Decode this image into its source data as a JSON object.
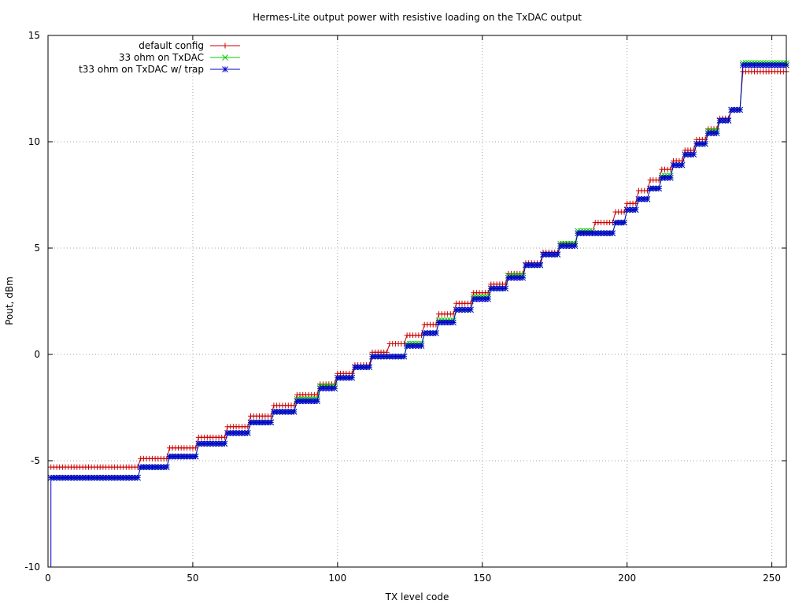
{
  "chart_data": {
    "type": "line",
    "title": "Hermes-Lite output power with resistive loading on the TxDAC output",
    "xlabel": "TX level code",
    "ylabel": "Pout, dBm",
    "xlim": [
      0,
      255
    ],
    "ylim": [
      -10,
      15
    ],
    "xticks": [
      0,
      50,
      100,
      150,
      200,
      250
    ],
    "yticks": [
      -10,
      -5,
      0,
      5,
      10,
      15
    ],
    "grid": true,
    "legend_position": "top-left",
    "series": [
      {
        "name": "default config",
        "color": "#cc0000",
        "marker": "plus",
        "steps": [
          [
            1,
            31,
            -5.3
          ],
          [
            32,
            41,
            -4.9
          ],
          [
            42,
            51,
            -4.4
          ],
          [
            52,
            61,
            -3.9
          ],
          [
            62,
            69,
            -3.4
          ],
          [
            70,
            77,
            -2.9
          ],
          [
            78,
            85,
            -2.4
          ],
          [
            86,
            93,
            -1.9
          ],
          [
            94,
            99,
            -1.4
          ],
          [
            100,
            105,
            -0.9
          ],
          [
            106,
            111,
            -0.5
          ],
          [
            112,
            117,
            0.1
          ],
          [
            118,
            123,
            0.5
          ],
          [
            124,
            129,
            0.9
          ],
          [
            130,
            134,
            1.4
          ],
          [
            135,
            140,
            1.9
          ],
          [
            141,
            146,
            2.4
          ],
          [
            147,
            152,
            2.9
          ],
          [
            153,
            158,
            3.3
          ],
          [
            159,
            164,
            3.8
          ],
          [
            165,
            170,
            4.3
          ],
          [
            171,
            176,
            4.8
          ],
          [
            177,
            182,
            5.2
          ],
          [
            183,
            188,
            5.7
          ],
          [
            189,
            195,
            6.2
          ],
          [
            196,
            199,
            6.7
          ],
          [
            200,
            203,
            7.1
          ],
          [
            204,
            207,
            7.7
          ],
          [
            208,
            211,
            8.2
          ],
          [
            212,
            215,
            8.7
          ],
          [
            216,
            219,
            9.1
          ],
          [
            220,
            223,
            9.6
          ],
          [
            224,
            227,
            10.1
          ],
          [
            228,
            231,
            10.6
          ],
          [
            232,
            235,
            11.1
          ],
          [
            236,
            239,
            11.5
          ],
          [
            240,
            255,
            13.3
          ]
        ]
      },
      {
        "name": "33 ohm on TxDAC",
        "color": "#00cc00",
        "marker": "cross",
        "steps": [
          [
            1,
            31,
            -5.8
          ],
          [
            32,
            41,
            -5.3
          ],
          [
            42,
            51,
            -4.8
          ],
          [
            52,
            61,
            -4.2
          ],
          [
            62,
            69,
            -3.7
          ],
          [
            70,
            77,
            -3.2
          ],
          [
            78,
            85,
            -2.7
          ],
          [
            86,
            93,
            -2.1
          ],
          [
            94,
            99,
            -1.5
          ],
          [
            100,
            105,
            -1.1
          ],
          [
            106,
            111,
            -0.6
          ],
          [
            112,
            123,
            -0.1
          ],
          [
            124,
            129,
            0.5
          ],
          [
            130,
            134,
            1.0
          ],
          [
            135,
            140,
            1.6
          ],
          [
            141,
            146,
            2.1
          ],
          [
            147,
            152,
            2.7
          ],
          [
            153,
            158,
            3.1
          ],
          [
            159,
            164,
            3.7
          ],
          [
            165,
            170,
            4.2
          ],
          [
            171,
            176,
            4.7
          ],
          [
            177,
            182,
            5.2
          ],
          [
            183,
            188,
            5.8
          ],
          [
            189,
            195,
            5.7
          ],
          [
            196,
            199,
            6.2
          ],
          [
            200,
            203,
            6.8
          ],
          [
            204,
            207,
            7.3
          ],
          [
            208,
            211,
            7.8
          ],
          [
            212,
            215,
            8.4
          ],
          [
            216,
            219,
            8.9
          ],
          [
            220,
            223,
            9.4
          ],
          [
            224,
            227,
            9.9
          ],
          [
            228,
            231,
            10.5
          ],
          [
            232,
            235,
            11.0
          ],
          [
            236,
            239,
            11.5
          ],
          [
            240,
            255,
            13.7
          ]
        ]
      },
      {
        "name": "t33 ohm on TxDAC w/ trap",
        "color": "#0000cc",
        "marker": "star",
        "drop_to": -10,
        "steps": [
          [
            1,
            31,
            -5.8
          ],
          [
            32,
            41,
            -5.3
          ],
          [
            42,
            51,
            -4.8
          ],
          [
            52,
            61,
            -4.2
          ],
          [
            62,
            69,
            -3.7
          ],
          [
            70,
            77,
            -3.2
          ],
          [
            78,
            85,
            -2.7
          ],
          [
            86,
            93,
            -2.2
          ],
          [
            94,
            99,
            -1.6
          ],
          [
            100,
            105,
            -1.1
          ],
          [
            106,
            111,
            -0.6
          ],
          [
            112,
            123,
            -0.1
          ],
          [
            124,
            129,
            0.4
          ],
          [
            130,
            134,
            1.0
          ],
          [
            135,
            140,
            1.5
          ],
          [
            141,
            146,
            2.1
          ],
          [
            147,
            152,
            2.6
          ],
          [
            153,
            158,
            3.1
          ],
          [
            159,
            164,
            3.6
          ],
          [
            165,
            170,
            4.2
          ],
          [
            171,
            176,
            4.7
          ],
          [
            177,
            182,
            5.1
          ],
          [
            183,
            188,
            5.7
          ],
          [
            189,
            195,
            5.7
          ],
          [
            196,
            199,
            6.2
          ],
          [
            200,
            203,
            6.8
          ],
          [
            204,
            207,
            7.3
          ],
          [
            208,
            211,
            7.8
          ],
          [
            212,
            215,
            8.3
          ],
          [
            216,
            219,
            8.9
          ],
          [
            220,
            223,
            9.4
          ],
          [
            224,
            227,
            9.9
          ],
          [
            228,
            231,
            10.4
          ],
          [
            232,
            235,
            11.0
          ],
          [
            236,
            239,
            11.5
          ],
          [
            240,
            255,
            13.6
          ]
        ]
      }
    ]
  }
}
